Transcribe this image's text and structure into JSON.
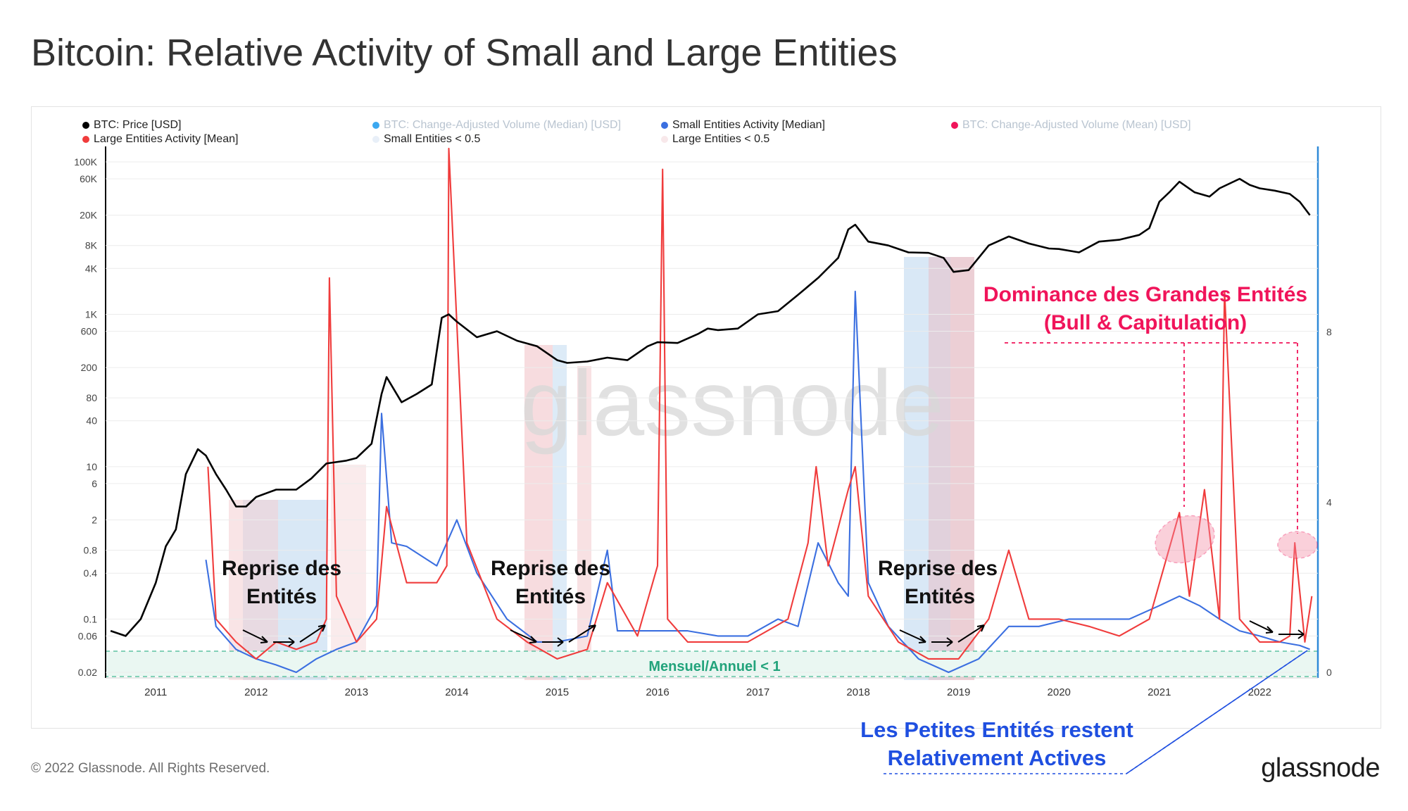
{
  "page": {
    "title": "Bitcoin: Relative Activity of Small and Large Entities",
    "footer": "© 2022 Glassnode. All Rights Reserved.",
    "brand": "glassnode",
    "watermark": "glassnode"
  },
  "legend": [
    {
      "label": "BTC: Price [USD]",
      "color": "#000000",
      "faded": false
    },
    {
      "label": "BTC: Change-Adjusted Volume (Median) [USD]",
      "color": "#3ca8f0",
      "faded": true
    },
    {
      "label": "Small Entities Activity [Median]",
      "color": "#3b6fe0",
      "faded": false
    },
    {
      "label": "BTC: Change-Adjusted Volume (Mean) [USD]",
      "color": "#f0145a",
      "faded": true
    },
    {
      "label": "Large Entities Activity [Mean]",
      "color": "#f03c3c",
      "faded": false
    },
    {
      "label": "Small Entities < 0.5",
      "color": "#e8eff8",
      "faded": false
    },
    {
      "label": "Large Entities < 0.5",
      "color": "#f8e8ea",
      "faded": false
    }
  ],
  "chart_data": {
    "type": "line",
    "title": "Bitcoin: Relative Activity of Small and Large Entities",
    "x_ticks": [
      "2011",
      "2012",
      "2013",
      "2014",
      "2015",
      "2016",
      "2017",
      "2018",
      "2019",
      "2020",
      "2021",
      "2022"
    ],
    "x_range": [
      2010.5,
      2022.58
    ],
    "left_axis": {
      "scale": "log",
      "ticks": [
        "100K",
        "60K",
        "20K",
        "8K",
        "4K",
        "1K",
        "600",
        "200",
        "80",
        "40",
        "10",
        "6",
        "2",
        "0.8",
        "0.4",
        "0.1",
        "0.06",
        "0.02"
      ],
      "tick_values": [
        100000,
        60000,
        20000,
        8000,
        4000,
        1000,
        600,
        200,
        80,
        40,
        10,
        6,
        2,
        0.8,
        0.4,
        0.1,
        0.06,
        0.02
      ]
    },
    "right_axis": {
      "ticks": [
        "8",
        "4",
        "0"
      ],
      "range": [
        0,
        12
      ]
    },
    "series": [
      {
        "name": "BTC: Price [USD]",
        "color": "#000000",
        "axis": "left",
        "x": [
          2010.55,
          2010.7,
          2010.85,
          2011.0,
          2011.1,
          2011.2,
          2011.3,
          2011.42,
          2011.5,
          2011.6,
          2011.7,
          2011.8,
          2011.9,
          2012.0,
          2012.2,
          2012.4,
          2012.55,
          2012.7,
          2012.9,
          2013.0,
          2013.15,
          2013.25,
          2013.3,
          2013.45,
          2013.6,
          2013.75,
          2013.85,
          2013.92,
          2014.0,
          2014.2,
          2014.4,
          2014.6,
          2014.8,
          2015.0,
          2015.1,
          2015.3,
          2015.5,
          2015.7,
          2015.9,
          2016.0,
          2016.2,
          2016.4,
          2016.5,
          2016.6,
          2016.8,
          2017.0,
          2017.2,
          2017.4,
          2017.6,
          2017.8,
          2017.9,
          2017.97,
          2018.1,
          2018.3,
          2018.5,
          2018.7,
          2018.85,
          2018.95,
          2019.1,
          2019.3,
          2019.5,
          2019.7,
          2019.9,
          2020.0,
          2020.2,
          2020.4,
          2020.6,
          2020.8,
          2020.9,
          2021.0,
          2021.1,
          2021.2,
          2021.35,
          2021.5,
          2021.6,
          2021.8,
          2021.9,
          2022.0,
          2022.15,
          2022.3,
          2022.4,
          2022.5
        ],
        "values": [
          0.07,
          0.06,
          0.1,
          0.3,
          0.9,
          1.5,
          8,
          17,
          14,
          8,
          5,
          3,
          3,
          4,
          5,
          5,
          7,
          11,
          12,
          13,
          20,
          90,
          150,
          70,
          90,
          120,
          900,
          1000,
          800,
          500,
          600,
          450,
          380,
          250,
          230,
          240,
          270,
          250,
          380,
          430,
          420,
          550,
          650,
          620,
          650,
          1000,
          1100,
          1800,
          3000,
          5500,
          13000,
          15000,
          9000,
          8000,
          6500,
          6400,
          5500,
          3600,
          3800,
          8000,
          10500,
          8500,
          7300,
          7200,
          6500,
          9000,
          9500,
          11000,
          13500,
          30000,
          40000,
          55000,
          40000,
          35000,
          45000,
          60000,
          50000,
          45000,
          42000,
          38000,
          30000,
          20000
        ]
      },
      {
        "name": "Small Entities Activity [Median]",
        "color": "#3b6fe0",
        "axis": "left",
        "x": [
          2011.5,
          2011.6,
          2011.8,
          2012.0,
          2012.2,
          2012.4,
          2012.6,
          2012.8,
          2013.0,
          2013.2,
          2013.25,
          2013.35,
          2013.5,
          2013.8,
          2014.0,
          2014.2,
          2014.5,
          2014.8,
          2015.0,
          2015.3,
          2015.5,
          2015.6,
          2015.8,
          2016.0,
          2016.3,
          2016.6,
          2016.9,
          2017.2,
          2017.4,
          2017.6,
          2017.8,
          2017.9,
          2017.97,
          2018.1,
          2018.3,
          2018.6,
          2018.9,
          2019.2,
          2019.5,
          2019.8,
          2020.1,
          2020.4,
          2020.7,
          2021.0,
          2021.2,
          2021.4,
          2021.6,
          2021.8,
          2022.0,
          2022.2,
          2022.4,
          2022.5
        ],
        "values": [
          0.6,
          0.08,
          0.04,
          0.03,
          0.025,
          0.02,
          0.03,
          0.04,
          0.05,
          0.15,
          50,
          1.0,
          0.9,
          0.5,
          2.0,
          0.4,
          0.1,
          0.05,
          0.05,
          0.06,
          0.8,
          0.07,
          0.07,
          0.07,
          0.07,
          0.06,
          0.06,
          0.1,
          0.08,
          1.0,
          0.3,
          0.2,
          2000,
          0.3,
          0.08,
          0.03,
          0.02,
          0.03,
          0.08,
          0.08,
          0.1,
          0.1,
          0.1,
          0.15,
          0.2,
          0.15,
          0.1,
          0.07,
          0.06,
          0.05,
          0.045,
          0.04
        ]
      },
      {
        "name": "Large Entities Activity [Mean]",
        "color": "#f03c3c",
        "axis": "left",
        "x": [
          2011.52,
          2011.6,
          2011.8,
          2012.0,
          2012.2,
          2012.4,
          2012.6,
          2012.7,
          2012.73,
          2012.8,
          2013.0,
          2013.2,
          2013.3,
          2013.5,
          2013.8,
          2013.9,
          2013.92,
          2014.1,
          2014.4,
          2014.7,
          2015.0,
          2015.3,
          2015.5,
          2015.8,
          2016.0,
          2016.05,
          2016.1,
          2016.3,
          2016.6,
          2016.9,
          2017.3,
          2017.5,
          2017.58,
          2017.7,
          2017.9,
          2017.97,
          2018.1,
          2018.4,
          2018.7,
          2019.0,
          2019.3,
          2019.5,
          2019.7,
          2020.0,
          2020.3,
          2020.6,
          2020.9,
          2021.05,
          2021.2,
          2021.3,
          2021.45,
          2021.6,
          2021.65,
          2021.8,
          2022.0,
          2022.2,
          2022.3,
          2022.35,
          2022.45,
          2022.52
        ],
        "values": [
          10,
          0.1,
          0.05,
          0.03,
          0.05,
          0.04,
          0.05,
          0.1,
          3000,
          0.2,
          0.05,
          0.1,
          3,
          0.3,
          0.3,
          0.5,
          150000,
          1,
          0.1,
          0.05,
          0.03,
          0.04,
          0.3,
          0.06,
          0.5,
          80000,
          0.1,
          0.05,
          0.05,
          0.05,
          0.1,
          1.0,
          10,
          0.5,
          5,
          10,
          0.2,
          0.05,
          0.03,
          0.03,
          0.1,
          0.8,
          0.1,
          0.1,
          0.08,
          0.06,
          0.1,
          0.5,
          2.5,
          0.2,
          5,
          0.1,
          2000,
          0.1,
          0.05,
          0.05,
          0.06,
          1.0,
          0.05,
          0.2
        ]
      }
    ],
    "threshold_band": {
      "label": "Mensuel/Annuel  < 1"
    },
    "annotations": [
      {
        "line1": "Reprise des",
        "line2": "Entités"
      },
      {
        "line1": "Reprise des",
        "line2": "Entités"
      },
      {
        "line1": "Reprise des",
        "line2": "Entités"
      },
      {
        "line1": "Dominance des Grandes Entités",
        "line2": "(Bull & Capitulation)"
      },
      {
        "line1": "Les Petites Entités restent",
        "line2": "Relativement Actives"
      }
    ]
  }
}
